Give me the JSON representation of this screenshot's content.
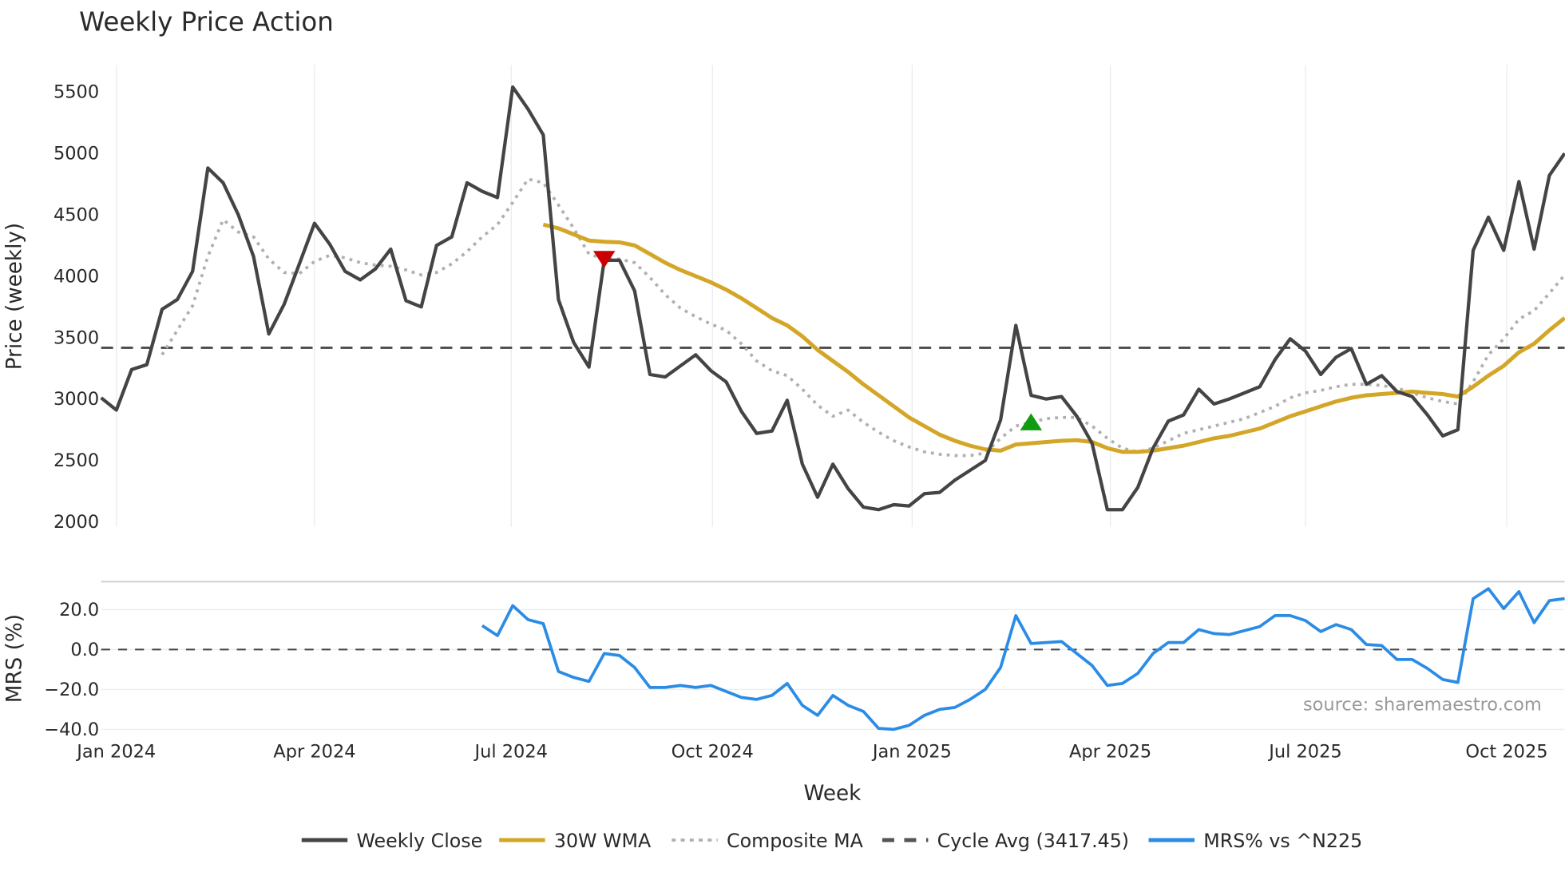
{
  "chart_data": {
    "type": "line",
    "title": "Weekly Price Action",
    "xlabel": "Week",
    "source": "source: sharemaestro.com",
    "x_ticks": [
      {
        "label": "Jan 2024",
        "week": 1
      },
      {
        "label": "Apr 2024",
        "week": 14
      },
      {
        "label": "Jul 2024",
        "week": 26.9
      },
      {
        "label": "Oct 2024",
        "week": 40.1
      },
      {
        "label": "Jan 2025",
        "week": 53.2
      },
      {
        "label": "Apr 2025",
        "week": 66.2
      },
      {
        "label": "Jul 2025",
        "week": 79
      },
      {
        "label": "Oct 2025",
        "week": 92.2
      }
    ],
    "x_range": [
      0,
      96
    ],
    "price_panel": {
      "ylabel": "Price (weekly)",
      "ylim": [
        1960,
        5720
      ],
      "y_ticks": [
        2000,
        2500,
        3000,
        3500,
        4000,
        4500,
        5000,
        5500
      ],
      "grid": "vertical",
      "series": [
        {
          "name": "Weekly Close",
          "color": "#444444",
          "style": "solid",
          "start": 0,
          "values": [
            3010,
            2910,
            3240,
            3280,
            3730,
            3810,
            4040,
            4880,
            4760,
            4500,
            4160,
            3530,
            3770,
            4100,
            4430,
            4260,
            4040,
            3970,
            4060,
            4220,
            3800,
            3750,
            4250,
            4320,
            4760,
            4690,
            4640,
            5540,
            5360,
            5150,
            3810,
            3460,
            3260,
            4130,
            4130,
            3880,
            3200,
            3180,
            3270,
            3360,
            3230,
            3140,
            2900,
            2720,
            2740,
            2990,
            2470,
            2200,
            2470,
            2270,
            2120,
            2100,
            2140,
            2130,
            2230,
            2240,
            2340,
            2420,
            2500,
            2830,
            3600,
            3030,
            3000,
            3020,
            2860,
            2640,
            2100,
            2100,
            2280,
            2600,
            2820,
            2870,
            3080,
            2960,
            3000,
            3050,
            3100,
            3320,
            3490,
            3390,
            3200,
            3340,
            3410,
            3120,
            3190,
            3060,
            3020,
            2870,
            2700,
            2750,
            4210,
            4480,
            4210,
            4770,
            4220,
            4820,
            5000
          ]
        },
        {
          "name": "30W WMA",
          "color": "#d4a628",
          "style": "solid",
          "start": 29,
          "values": [
            4420,
            4390,
            4340,
            4290,
            4280,
            4275,
            4250,
            4180,
            4110,
            4050,
            4000,
            3950,
            3890,
            3820,
            3740,
            3660,
            3600,
            3510,
            3400,
            3310,
            3220,
            3120,
            3030,
            2940,
            2850,
            2780,
            2710,
            2660,
            2620,
            2590,
            2580,
            2630,
            2640,
            2650,
            2660,
            2665,
            2650,
            2600,
            2570,
            2570,
            2580,
            2600,
            2620,
            2650,
            2680,
            2700,
            2730,
            2760,
            2810,
            2860,
            2900,
            2940,
            2980,
            3010,
            3030,
            3040,
            3050,
            3060,
            3050,
            3040,
            3020,
            3100,
            3190,
            3270,
            3380,
            3450,
            3560,
            3660
          ]
        },
        {
          "name": "Composite MA",
          "color": "#b0b0b0",
          "style": "dotted",
          "start": 4,
          "values": [
            3360,
            3560,
            3760,
            4160,
            4460,
            4360,
            4320,
            4140,
            4030,
            4020,
            4120,
            4170,
            4150,
            4110,
            4090,
            4080,
            4050,
            4010,
            4030,
            4100,
            4200,
            4320,
            4420,
            4600,
            4790,
            4760,
            4580,
            4390,
            4180,
            4140,
            4140,
            4110,
            3990,
            3850,
            3740,
            3670,
            3610,
            3560,
            3450,
            3310,
            3230,
            3190,
            3080,
            2950,
            2860,
            2910,
            2810,
            2730,
            2660,
            2610,
            2570,
            2550,
            2540,
            2540,
            2560,
            2680,
            2780,
            2810,
            2840,
            2850,
            2850,
            2780,
            2680,
            2600,
            2570,
            2600,
            2660,
            2720,
            2750,
            2780,
            2810,
            2840,
            2890,
            2940,
            3010,
            3050,
            3070,
            3100,
            3120,
            3120,
            3110,
            3090,
            3050,
            3010,
            2980,
            2960,
            3140,
            3360,
            3490,
            3650,
            3720,
            3860,
            4010
          ]
        }
      ],
      "reference_line": {
        "name": "Cycle Avg (3417.45)",
        "value": 3417.45,
        "color": "#444444",
        "style": "dashed"
      },
      "markers": [
        {
          "type": "sell",
          "shape": "triangle-down",
          "week": 33,
          "value": 4140,
          "color": "#cc0000"
        },
        {
          "type": "buy",
          "shape": "triangle-up",
          "week": 61,
          "value": 2810,
          "color": "#109c10"
        }
      ]
    },
    "mrs_panel": {
      "ylabel": "MRS (%)",
      "ylim": [
        -42,
        34
      ],
      "y_ticks": [
        {
          "v": 20,
          "label": "20.0"
        },
        {
          "v": 0,
          "label": "0.0"
        },
        {
          "v": -20,
          "label": "−20.0"
        },
        {
          "v": -40,
          "label": "−40.0"
        }
      ],
      "grid": "horizontal",
      "zero_line": 0,
      "series": [
        {
          "name": "MRS% vs ^N225",
          "color": "#2b8ce6",
          "style": "solid",
          "start": 25,
          "values": [
            12,
            7,
            22,
            15,
            13,
            -11,
            -14,
            -16,
            -2,
            -3,
            -9,
            -19,
            -19,
            -18,
            -19,
            -18,
            -21,
            -24,
            -25,
            -23,
            -17,
            -28,
            -33,
            -23,
            -28,
            -31,
            -39.5,
            -40,
            -38,
            -33,
            -30,
            -29,
            -25,
            -20,
            -9,
            17,
            3,
            3.5,
            4,
            -2,
            -8,
            -18,
            -17,
            -12,
            -2,
            3.5,
            3.5,
            10,
            8,
            7.5,
            9.5,
            11.5,
            17,
            17,
            14.5,
            9,
            12.5,
            10,
            2.5,
            2,
            -5,
            -5,
            -9.5,
            -15,
            -16.5,
            25.5,
            30.5,
            20.5,
            29,
            13.5,
            24.5,
            25.5
          ]
        }
      ]
    },
    "legend": {
      "placement": "bottom-center",
      "items": [
        {
          "label": "Weekly Close",
          "color": "#444444",
          "style": "solid"
        },
        {
          "label": "30W WMA",
          "color": "#d4a628",
          "style": "solid"
        },
        {
          "label": "Composite MA",
          "color": "#b0b0b0",
          "style": "dotted"
        },
        {
          "label": "Cycle Avg (3417.45)",
          "color": "#555555",
          "style": "dashed"
        },
        {
          "label": "MRS% vs ^N225",
          "color": "#2b8ce6",
          "style": "solid"
        }
      ]
    }
  }
}
